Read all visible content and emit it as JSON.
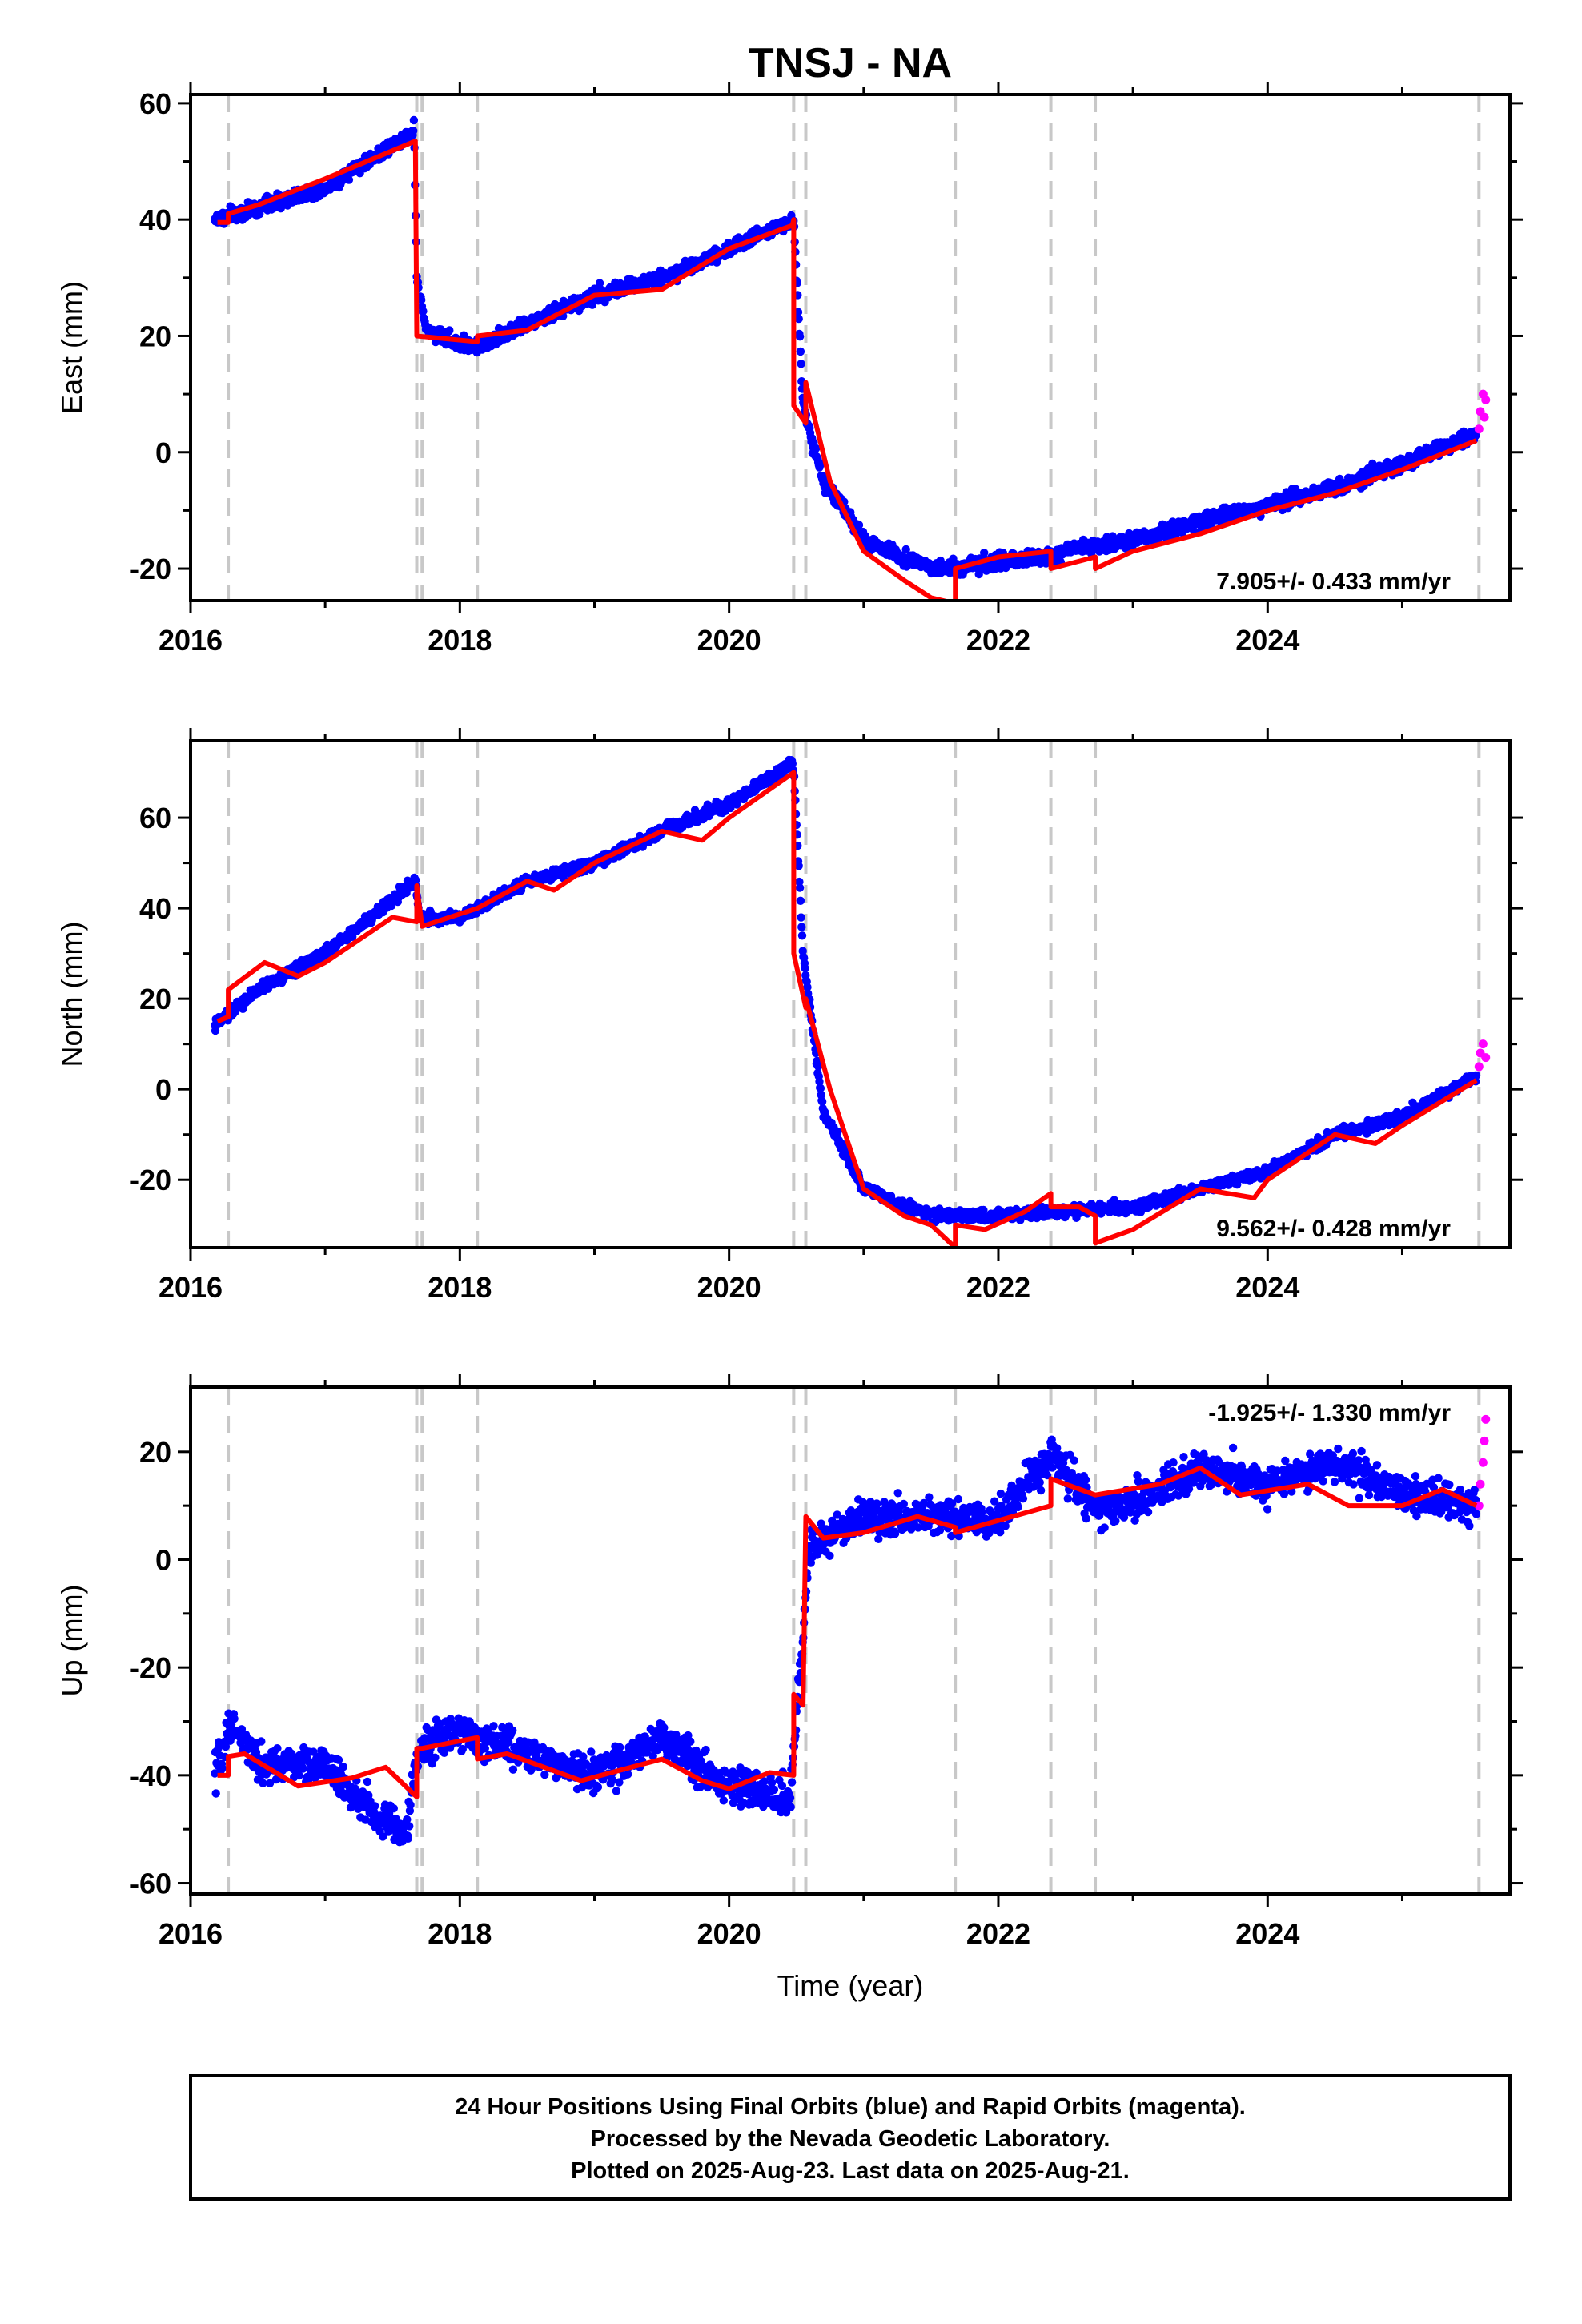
{
  "chart_data": {
    "title": "TNSJ - NA",
    "xlabel": "Time (year)",
    "type": "scatter",
    "xlim": [
      2016.0,
      2025.8
    ],
    "x_ticks": [
      2016,
      2018,
      2020,
      2022,
      2024
    ],
    "break_epochs": [
      2016.28,
      2017.68,
      2017.72,
      2018.13,
      2020.48,
      2020.57,
      2021.68,
      2022.39,
      2022.72,
      2025.57
    ],
    "colors": {
      "final": "#0000ff",
      "rapid": "#ff00ff",
      "model": "#ff0000",
      "breaks": "#c8c8c8"
    },
    "panels": [
      {
        "name": "east",
        "ylabel": "East (mm)",
        "ylim": [
          -25.5,
          61.5
        ],
        "y_ticks": [
          -20,
          0,
          20,
          40,
          60
        ],
        "rate_text": "7.905+/- 0.433 mm/yr",
        "rate_anchor": "bottom",
        "observed": [
          [
            2016.18,
            40
          ],
          [
            2016.5,
            42
          ],
          [
            2017.0,
            45.5
          ],
          [
            2017.65,
            55
          ],
          [
            2017.66,
            56
          ],
          [
            2017.68,
            30
          ],
          [
            2017.75,
            21
          ],
          [
            2018.1,
            18
          ],
          [
            2018.5,
            22
          ],
          [
            2019.0,
            27
          ],
          [
            2019.5,
            30
          ],
          [
            2020.0,
            35
          ],
          [
            2020.47,
            40
          ],
          [
            2020.48,
            40
          ],
          [
            2020.55,
            8
          ],
          [
            2020.7,
            -5
          ],
          [
            2021.0,
            -15
          ],
          [
            2021.5,
            -20
          ],
          [
            2022.0,
            -19
          ],
          [
            2022.39,
            -18
          ],
          [
            2022.5,
            -17
          ],
          [
            2023.0,
            -15
          ],
          [
            2023.5,
            -12
          ],
          [
            2024.0,
            -9
          ],
          [
            2024.5,
            -6
          ],
          [
            2025.0,
            -2
          ],
          [
            2025.55,
            3
          ]
        ],
        "model": [
          [
            2016.2,
            39.5
          ],
          [
            2016.28,
            39.5
          ],
          [
            2016.28,
            41
          ],
          [
            2016.5,
            42.5
          ],
          [
            2017.0,
            47
          ],
          [
            2017.67,
            53.5
          ],
          [
            2017.68,
            20
          ],
          [
            2018.13,
            19
          ],
          [
            2018.13,
            20
          ],
          [
            2018.5,
            21
          ],
          [
            2019.0,
            27
          ],
          [
            2019.5,
            28
          ],
          [
            2020.0,
            35
          ],
          [
            2020.47,
            39
          ],
          [
            2020.48,
            40
          ],
          [
            2020.48,
            8
          ],
          [
            2020.57,
            5
          ],
          [
            2020.57,
            12
          ],
          [
            2020.75,
            -5
          ],
          [
            2021.0,
            -17
          ],
          [
            2021.3,
            -22
          ],
          [
            2021.5,
            -25
          ],
          [
            2021.68,
            -26
          ],
          [
            2021.68,
            -20
          ],
          [
            2022.0,
            -18
          ],
          [
            2022.39,
            -17
          ],
          [
            2022.39,
            -20
          ],
          [
            2022.72,
            -18
          ],
          [
            2022.72,
            -20
          ],
          [
            2023.0,
            -17
          ],
          [
            2023.5,
            -14
          ],
          [
            2024.0,
            -10
          ],
          [
            2024.5,
            -7
          ],
          [
            2025.0,
            -3
          ],
          [
            2025.55,
            2
          ]
        ],
        "rapid": [
          [
            2025.57,
            4
          ],
          [
            2025.58,
            7
          ],
          [
            2025.6,
            10
          ],
          [
            2025.61,
            6
          ],
          [
            2025.62,
            9
          ]
        ]
      },
      {
        "name": "north",
        "ylabel": "North (mm)",
        "ylim": [
          -35,
          77
        ],
        "y_ticks": [
          -20,
          0,
          20,
          40,
          60
        ],
        "rate_text": "9.562+/- 0.428 mm/yr",
        "rate_anchor": "bottom",
        "observed": [
          [
            2016.18,
            14
          ],
          [
            2016.5,
            22
          ],
          [
            2017.0,
            30
          ],
          [
            2017.67,
            46
          ],
          [
            2017.7,
            38
          ],
          [
            2018.0,
            38
          ],
          [
            2018.5,
            46
          ],
          [
            2019.0,
            50
          ],
          [
            2019.5,
            57
          ],
          [
            2020.0,
            63
          ],
          [
            2020.47,
            72
          ],
          [
            2020.48,
            70
          ],
          [
            2020.55,
            30
          ],
          [
            2020.7,
            -5
          ],
          [
            2021.0,
            -22
          ],
          [
            2021.5,
            -28
          ],
          [
            2022.0,
            -28
          ],
          [
            2022.5,
            -27
          ],
          [
            2023.0,
            -26
          ],
          [
            2023.5,
            -22
          ],
          [
            2024.0,
            -18
          ],
          [
            2024.5,
            -10
          ],
          [
            2025.0,
            -6
          ],
          [
            2025.55,
            3
          ]
        ],
        "model": [
          [
            2016.2,
            15
          ],
          [
            2016.28,
            16
          ],
          [
            2016.28,
            22
          ],
          [
            2016.55,
            28
          ],
          [
            2016.8,
            25
          ],
          [
            2017.0,
            28
          ],
          [
            2017.5,
            38
          ],
          [
            2017.68,
            37
          ],
          [
            2017.68,
            45
          ],
          [
            2017.72,
            36
          ],
          [
            2018.13,
            40
          ],
          [
            2018.5,
            46
          ],
          [
            2018.7,
            44
          ],
          [
            2019.0,
            50
          ],
          [
            2019.5,
            57
          ],
          [
            2019.8,
            55
          ],
          [
            2020.0,
            60
          ],
          [
            2020.48,
            70
          ],
          [
            2020.48,
            30
          ],
          [
            2020.57,
            18
          ],
          [
            2020.57,
            20
          ],
          [
            2020.75,
            0
          ],
          [
            2021.0,
            -22
          ],
          [
            2021.3,
            -28
          ],
          [
            2021.5,
            -30
          ],
          [
            2021.68,
            -35
          ],
          [
            2021.68,
            -30
          ],
          [
            2021.9,
            -31
          ],
          [
            2022.2,
            -27
          ],
          [
            2022.39,
            -23
          ],
          [
            2022.39,
            -26
          ],
          [
            2022.6,
            -26
          ],
          [
            2022.72,
            -28
          ],
          [
            2022.72,
            -34
          ],
          [
            2023.0,
            -31
          ],
          [
            2023.5,
            -22
          ],
          [
            2023.9,
            -24
          ],
          [
            2024.0,
            -20
          ],
          [
            2024.5,
            -10
          ],
          [
            2024.8,
            -12
          ],
          [
            2025.0,
            -8
          ],
          [
            2025.55,
            2
          ]
        ],
        "rapid": [
          [
            2025.57,
            5
          ],
          [
            2025.58,
            8
          ],
          [
            2025.6,
            10
          ],
          [
            2025.62,
            7
          ]
        ]
      },
      {
        "name": "up",
        "ylabel": "Up (mm)",
        "ylim": [
          -62,
          32
        ],
        "y_ticks": [
          -60,
          -40,
          -20,
          0,
          20
        ],
        "rate_text": "-1.925+/- 1.330 mm/yr",
        "rate_anchor": "top",
        "observed": [
          [
            2016.18,
            -40
          ],
          [
            2016.3,
            -30
          ],
          [
            2016.5,
            -38
          ],
          [
            2017.0,
            -38
          ],
          [
            2017.4,
            -48
          ],
          [
            2017.6,
            -50
          ],
          [
            2017.7,
            -35
          ],
          [
            2018.0,
            -32
          ],
          [
            2018.5,
            -36
          ],
          [
            2019.0,
            -40
          ],
          [
            2019.5,
            -33
          ],
          [
            2020.0,
            -42
          ],
          [
            2020.45,
            -45
          ],
          [
            2020.5,
            -30
          ],
          [
            2020.6,
            2
          ],
          [
            2021.0,
            8
          ],
          [
            2021.5,
            8
          ],
          [
            2022.0,
            7
          ],
          [
            2022.4,
            20
          ],
          [
            2022.7,
            10
          ],
          [
            2023.0,
            10
          ],
          [
            2023.5,
            17
          ],
          [
            2024.0,
            14
          ],
          [
            2024.5,
            18
          ],
          [
            2025.0,
            12
          ],
          [
            2025.55,
            10
          ]
        ],
        "model": [
          [
            2016.2,
            -40
          ],
          [
            2016.28,
            -40
          ],
          [
            2016.28,
            -36.5
          ],
          [
            2016.4,
            -36
          ],
          [
            2016.8,
            -42
          ],
          [
            2017.2,
            -40.5
          ],
          [
            2017.45,
            -38.5
          ],
          [
            2017.68,
            -44
          ],
          [
            2017.68,
            -35
          ],
          [
            2017.72,
            -35
          ],
          [
            2018.13,
            -33
          ],
          [
            2018.13,
            -37
          ],
          [
            2018.35,
            -36
          ],
          [
            2018.9,
            -41
          ],
          [
            2019.5,
            -37
          ],
          [
            2019.8,
            -41
          ],
          [
            2020.0,
            -42.5
          ],
          [
            2020.3,
            -39.5
          ],
          [
            2020.48,
            -40
          ],
          [
            2020.48,
            -25
          ],
          [
            2020.55,
            -27
          ],
          [
            2020.57,
            8
          ],
          [
            2020.7,
            4
          ],
          [
            2021.0,
            5
          ],
          [
            2021.4,
            8
          ],
          [
            2021.68,
            6
          ],
          [
            2021.68,
            5
          ],
          [
            2022.39,
            10
          ],
          [
            2022.39,
            15
          ],
          [
            2022.72,
            12
          ],
          [
            2023.2,
            14
          ],
          [
            2023.5,
            17
          ],
          [
            2023.8,
            12
          ],
          [
            2024.3,
            14
          ],
          [
            2024.6,
            10
          ],
          [
            2025.0,
            10
          ],
          [
            2025.3,
            13
          ],
          [
            2025.55,
            10
          ]
        ],
        "rapid": [
          [
            2025.57,
            10
          ],
          [
            2025.58,
            14
          ],
          [
            2025.6,
            18
          ],
          [
            2025.61,
            22
          ],
          [
            2025.62,
            26
          ]
        ]
      }
    ]
  },
  "footer": {
    "line1": "24 Hour Positions Using Final Orbits (blue) and Rapid Orbits (magenta).",
    "line2": "Processed by the Nevada Geodetic Laboratory.",
    "line3": "Plotted on 2025-Aug-23. Last data on 2025-Aug-21."
  }
}
